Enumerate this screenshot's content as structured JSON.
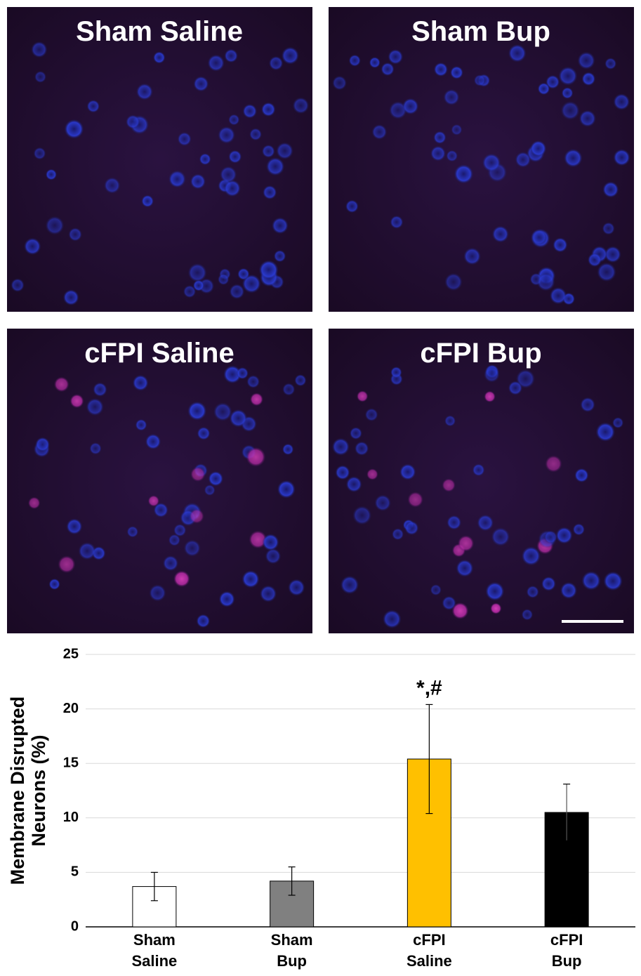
{
  "panels": [
    {
      "label": "Sham Saline"
    },
    {
      "label": "Sham Bup"
    },
    {
      "label": "cFPI Saline"
    },
    {
      "label": "cFPI Bup"
    }
  ],
  "chart_data": {
    "type": "bar",
    "y_label": "Membrane Disrupted\nNeurons (%)",
    "categories": [
      "Sham Saline",
      "Sham Bup",
      "cFPI Saline",
      "cFPI Bup"
    ],
    "values": [
      3.7,
      4.2,
      15.4,
      10.5
    ],
    "errors": [
      1.3,
      1.3,
      5.0,
      2.6
    ],
    "colors": [
      "#ffffff",
      "#808080",
      "#ffc000",
      "#000000"
    ],
    "ylim": [
      0,
      25
    ],
    "yticks": [
      0,
      5,
      10,
      15,
      20,
      25
    ],
    "grid": true,
    "annotations": [
      {
        "text": "*,#",
        "x": "cFPI Saline"
      }
    ]
  }
}
